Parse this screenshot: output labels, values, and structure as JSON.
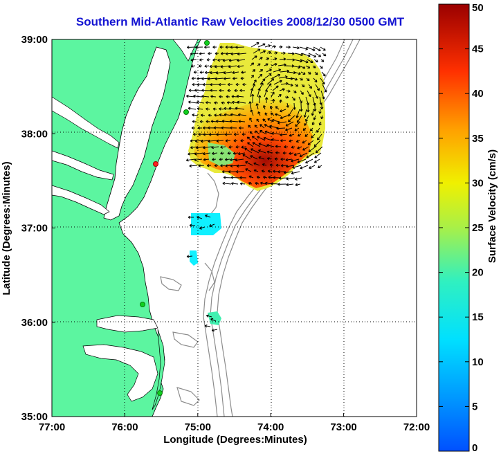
{
  "title": "Southern Mid-Atlantic Raw Velocities 2008/12/30 0500 GMT",
  "map": {
    "xlabel": "Longitude (Degrees:Minutes)",
    "ylabel": "Latitude (Degrees:Minutes)",
    "x_ticks": [
      "77:00",
      "76:00",
      "75:00",
      "74:00",
      "73:00",
      "72:00"
    ],
    "y_ticks": [
      "39:00",
      "38:00",
      "37:00",
      "36:00",
      "35:00"
    ],
    "lon_range": [
      -77,
      -72
    ],
    "lat_range": [
      35,
      39
    ],
    "grid": "dotted",
    "land_color": "#5cf5a0",
    "water_color": "#ffffff"
  },
  "colorbar": {
    "label": "Surface Velocity (cm/s)",
    "ticks": [
      "50",
      "45",
      "40",
      "35",
      "30",
      "25",
      "20",
      "15",
      "10",
      "5",
      "0"
    ],
    "min": 0,
    "max": 50,
    "colormap": "jet"
  }
}
